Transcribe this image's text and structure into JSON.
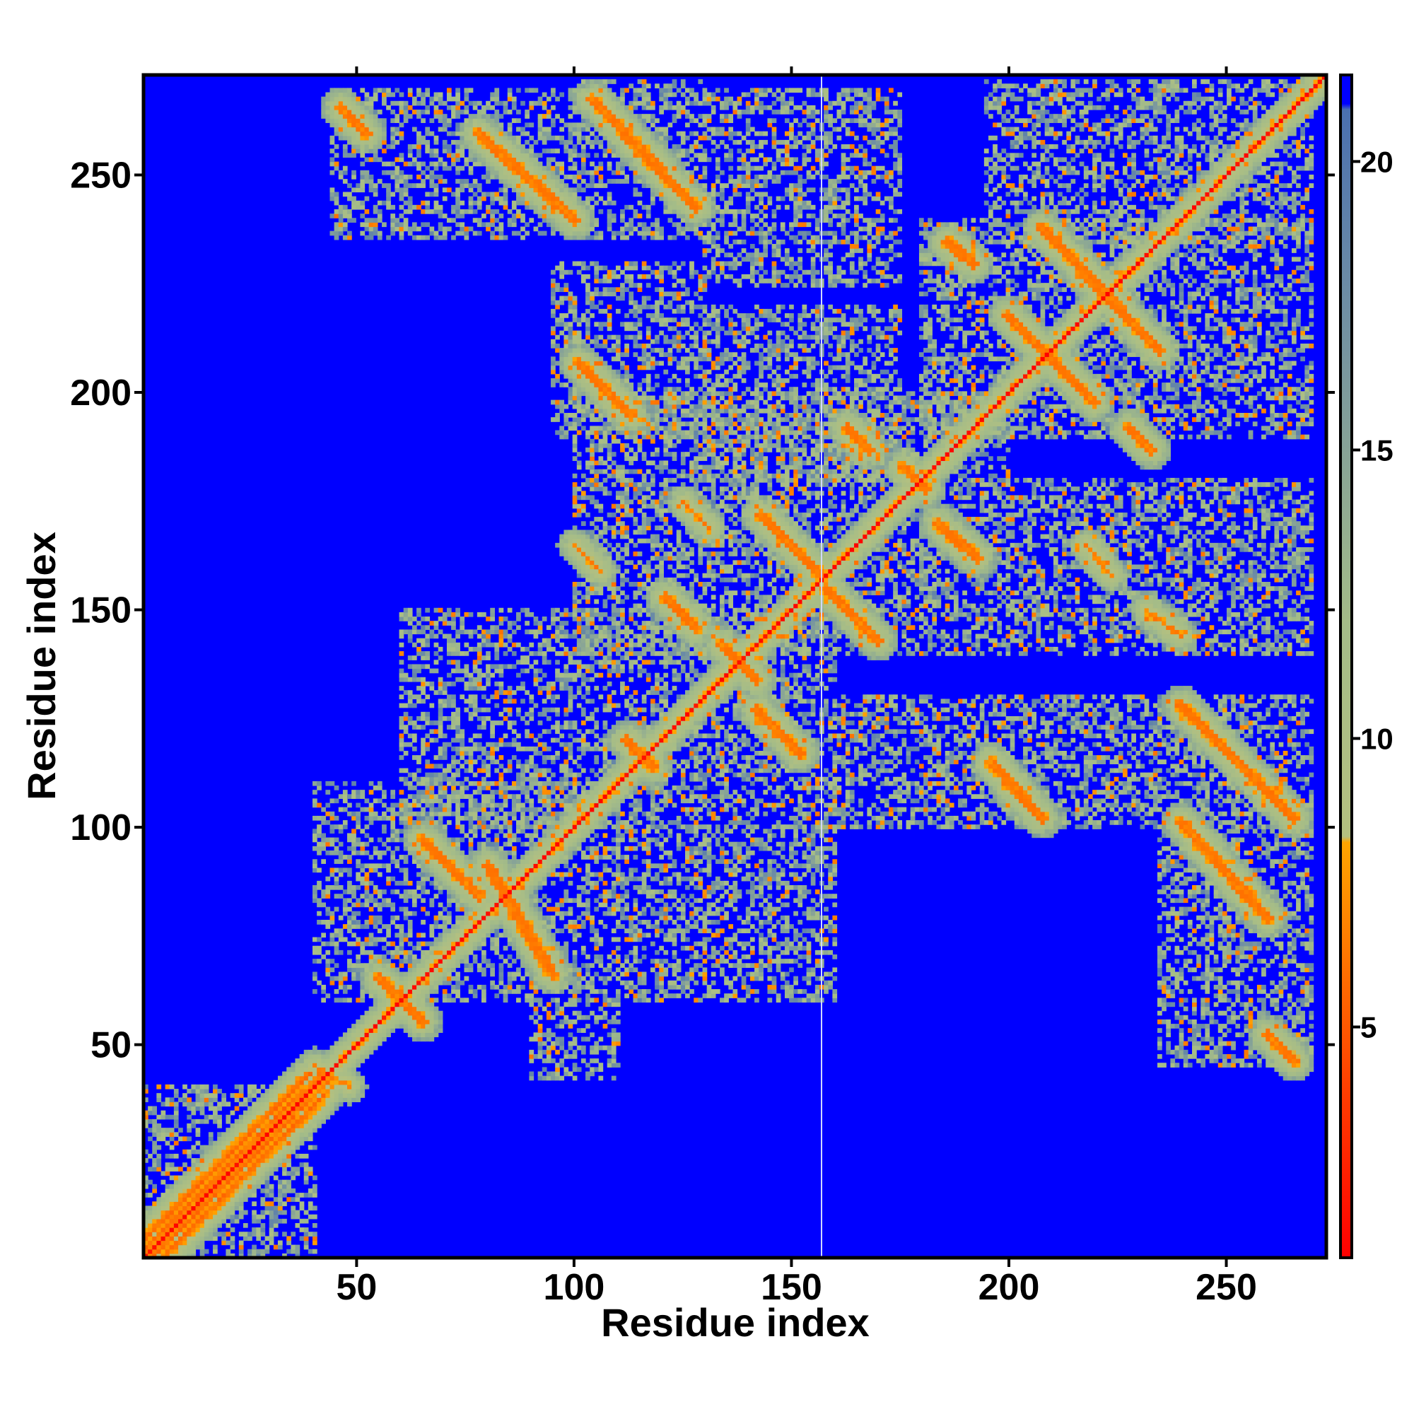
{
  "chart_data": {
    "type": "heatmap",
    "title": "",
    "xlabel": "Residue index",
    "ylabel": "Residue index",
    "n_residues": 273,
    "xlim": [
      1,
      273
    ],
    "ylim": [
      1,
      273
    ],
    "x_ticks": [
      50,
      100,
      150,
      200,
      250
    ],
    "y_ticks": [
      50,
      100,
      150,
      200,
      250
    ],
    "colorbar": {
      "min": 1,
      "max": 21.5,
      "ticks": [
        5,
        10,
        15,
        20
      ],
      "stops": [
        {
          "value": 1,
          "color": "#ff0000"
        },
        {
          "value": 4,
          "color": "#ff4000"
        },
        {
          "value": 8.2,
          "color": "#ffa500"
        },
        {
          "value": 8.3,
          "color": "#b4c080"
        },
        {
          "value": 12,
          "color": "#a4bc88"
        },
        {
          "value": 18,
          "color": "#6a8aa6"
        },
        {
          "value": 20.9,
          "color": "#4a70b0"
        },
        {
          "value": 21,
          "color": "#0000ff"
        },
        {
          "value": 21.5,
          "color": "#0000ff"
        }
      ]
    },
    "background_color": "#0000ff",
    "grid": false,
    "legend": "colorbar-right",
    "contact_segments": [
      {
        "from": [
          1,
          1
        ],
        "to": [
          273,
          273
        ],
        "width": 1.6,
        "value": 1
      },
      {
        "from": [
          1,
          1
        ],
        "to": [
          40,
          40
        ],
        "width": 5,
        "value": 11
      },
      {
        "from": [
          46,
          266
        ],
        "to": [
          52,
          260
        ],
        "width": 2,
        "value": 6
      },
      {
        "from": [
          78,
          260
        ],
        "to": [
          100,
          240
        ],
        "width": 2,
        "value": 6
      },
      {
        "from": [
          104,
          268
        ],
        "to": [
          128,
          243
        ],
        "width": 2,
        "value": 6
      },
      {
        "from": [
          101,
          207
        ],
        "to": [
          113,
          195
        ],
        "width": 2,
        "value": 6
      },
      {
        "from": [
          143,
          172
        ],
        "to": [
          157,
          158
        ],
        "width": 2,
        "value": 6
      },
      {
        "from": [
          158,
          155
        ],
        "to": [
          170,
          143
        ],
        "width": 2,
        "value": 6
      },
      {
        "from": [
          121,
          153
        ],
        "to": [
          128,
          146
        ],
        "width": 2,
        "value": 6
      },
      {
        "from": [
          134,
          142
        ],
        "to": [
          142,
          134
        ],
        "width": 2,
        "value": 6
      },
      {
        "from": [
          142,
          127
        ],
        "to": [
          152,
          117
        ],
        "width": 2,
        "value": 6
      },
      {
        "from": [
          163,
          192
        ],
        "to": [
          168,
          187
        ],
        "width": 2,
        "value": 6
      },
      {
        "from": [
          176,
          183
        ],
        "to": [
          181,
          178
        ],
        "width": 2,
        "value": 6
      },
      {
        "from": [
          184,
          170
        ],
        "to": [
          193,
          162
        ],
        "width": 2,
        "value": 6
      },
      {
        "from": [
          200,
          218
        ],
        "to": [
          220,
          198
        ],
        "width": 2,
        "value": 6
      },
      {
        "from": [
          208,
          238
        ],
        "to": [
          235,
          210
        ],
        "width": 2,
        "value": 6
      },
      {
        "from": [
          196,
          115
        ],
        "to": [
          208,
          102
        ],
        "width": 2,
        "value": 6
      },
      {
        "from": [
          240,
          128
        ],
        "to": [
          266,
          102
        ],
        "width": 2,
        "value": 6
      },
      {
        "from": [
          240,
          101
        ],
        "to": [
          260,
          79
        ],
        "width": 2,
        "value": 6
      },
      {
        "from": [
          260,
          52
        ],
        "to": [
          266,
          46
        ],
        "width": 2,
        "value": 6
      },
      {
        "from": [
          65,
          97
        ],
        "to": [
          78,
          84
        ],
        "width": 2,
        "value": 6
      },
      {
        "from": [
          80,
          91
        ],
        "to": [
          95,
          66
        ],
        "width": 2,
        "value": 6
      },
      {
        "from": [
          55,
          65
        ],
        "to": [
          65,
          55
        ],
        "width": 2,
        "value": 6
      },
      {
        "from": [
          112,
          120
        ],
        "to": [
          118,
          114
        ],
        "width": 2,
        "value": 6
      },
      {
        "from": [
          186,
          235
        ],
        "to": [
          192,
          230
        ],
        "width": 2,
        "value": 6
      },
      {
        "from": [
          228,
          192
        ],
        "to": [
          233,
          187
        ],
        "width": 2,
        "value": 6
      },
      {
        "from": [
          40,
          45
        ],
        "to": [
          48,
          40
        ],
        "width": 1.5,
        "value": 6
      },
      {
        "from": [
          125,
          175
        ],
        "to": [
          131,
          169
        ],
        "width": 1.5,
        "value": 6
      },
      {
        "from": [
          218,
          165
        ],
        "to": [
          224,
          158
        ],
        "width": 1.5,
        "value": 6
      },
      {
        "from": [
          100,
          165
        ],
        "to": [
          106,
          159
        ],
        "width": 1.5,
        "value": 6
      },
      {
        "from": [
          232,
          150
        ],
        "to": [
          240,
          144
        ],
        "width": 1.5,
        "value": 6
      }
    ],
    "halo_regions": [
      {
        "x": [
          44,
          100
        ],
        "y": [
          236,
          270
        ]
      },
      {
        "x": [
          100,
          130
        ],
        "y": [
          236,
          272
        ]
      },
      {
        "x": [
          130,
          175
        ],
        "y": [
          225,
          270
        ]
      },
      {
        "x": [
          195,
          270
        ],
        "y": [
          235,
          272
        ]
      },
      {
        "x": [
          95,
          130
        ],
        "y": [
          190,
          230
        ]
      },
      {
        "x": [
          130,
          175
        ],
        "y": [
          180,
          220
        ]
      },
      {
        "x": [
          180,
          270
        ],
        "y": [
          190,
          240
        ]
      },
      {
        "x": [
          100,
          200
        ],
        "y": [
          140,
          200
        ]
      },
      {
        "x": [
          200,
          270
        ],
        "y": [
          140,
          180
        ]
      },
      {
        "x": [
          60,
          160
        ],
        "y": [
          100,
          150
        ]
      },
      {
        "x": [
          160,
          270
        ],
        "y": [
          100,
          130
        ]
      },
      {
        "x": [
          40,
          110
        ],
        "y": [
          60,
          110
        ]
      },
      {
        "x": [
          110,
          160
        ],
        "y": [
          60,
          100
        ]
      },
      {
        "x": [
          235,
          270
        ],
        "y": [
          45,
          100
        ]
      },
      {
        "x": [
          90,
          110
        ],
        "y": [
          42,
          60
        ]
      },
      {
        "x": [
          1,
          40
        ],
        "y": [
          1,
          40
        ]
      }
    ]
  }
}
